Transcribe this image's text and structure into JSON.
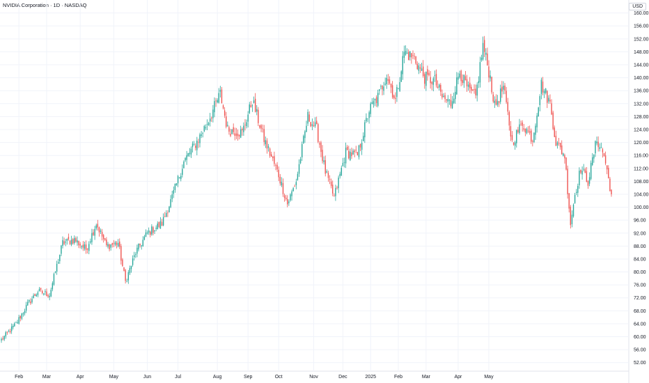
{
  "chart_data": {
    "type": "candlestick",
    "title": "NVIDIA Corporation · 1D · NASDAQ",
    "currency": "USD",
    "ylim": [
      50,
      161
    ],
    "y_ticks": [
      "160.00",
      "156.00",
      "152.00",
      "148.00",
      "144.00",
      "140.00",
      "136.00",
      "132.00",
      "128.00",
      "124.00",
      "120.00",
      "116.00",
      "112.00",
      "108.00",
      "104.00",
      "100.00",
      "96.00",
      "92.00",
      "88.00",
      "84.00",
      "80.00",
      "76.00",
      "72.00",
      "68.00",
      "64.00",
      "60.00",
      "56.00",
      "52.00"
    ],
    "x_ticks": [
      "Feb",
      "Mar",
      "Apr",
      "May",
      "Jun",
      "Jul",
      "Aug",
      "Sep",
      "Oct",
      "Nov",
      "Dec",
      "2025",
      "Feb",
      "Mar",
      "Apr",
      "May"
    ],
    "anchors": [
      [
        0,
        59
      ],
      [
        10,
        64
      ],
      [
        18,
        70
      ],
      [
        25,
        74
      ],
      [
        33,
        73
      ],
      [
        42,
        89
      ],
      [
        50,
        90
      ],
      [
        58,
        87
      ],
      [
        65,
        95
      ],
      [
        72,
        88
      ],
      [
        80,
        89
      ],
      [
        85,
        77
      ],
      [
        92,
        86
      ],
      [
        100,
        92
      ],
      [
        110,
        95
      ],
      [
        117,
        103
      ],
      [
        125,
        114
      ],
      [
        135,
        121
      ],
      [
        142,
        127
      ],
      [
        150,
        135
      ],
      [
        155,
        124
      ],
      [
        165,
        123
      ],
      [
        172,
        133
      ],
      [
        180,
        121
      ],
      [
        190,
        110
      ],
      [
        196,
        101
      ],
      [
        202,
        108
      ],
      [
        210,
        128
      ],
      [
        216,
        124
      ],
      [
        222,
        111
      ],
      [
        228,
        103
      ],
      [
        236,
        117
      ],
      [
        244,
        116
      ],
      [
        252,
        130
      ],
      [
        258,
        134
      ],
      [
        264,
        141
      ],
      [
        270,
        133
      ],
      [
        276,
        148
      ],
      [
        283,
        146
      ],
      [
        290,
        140
      ],
      [
        297,
        139
      ],
      [
        302,
        134
      ],
      [
        308,
        132
      ],
      [
        314,
        142
      ],
      [
        320,
        136
      ],
      [
        325,
        134
      ],
      [
        330,
        150
      ],
      [
        335,
        140
      ],
      [
        338,
        131
      ],
      [
        344,
        137
      ],
      [
        350,
        120
      ],
      [
        357,
        126
      ],
      [
        364,
        121
      ],
      [
        370,
        138
      ],
      [
        376,
        132
      ],
      [
        380,
        120
      ],
      [
        386,
        116
      ],
      [
        390,
        95
      ],
      [
        393,
        104
      ],
      [
        397,
        112
      ],
      [
        402,
        108
      ],
      [
        408,
        121
      ],
      [
        413,
        116
      ],
      [
        418,
        104
      ]
    ],
    "volatility": 3.2,
    "candle_count": 419,
    "colors": {
      "up": "#26a69a",
      "down": "#ef5350",
      "grid": "#f0f3fa",
      "axis_text": "#131722"
    }
  }
}
